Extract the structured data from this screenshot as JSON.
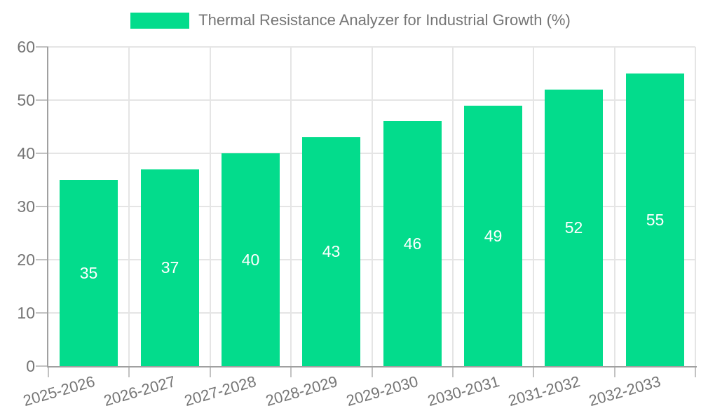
{
  "chart_data": {
    "type": "bar",
    "title": "Thermal Resistance Analyzer for Industrial Growth (%)",
    "legend_label": "Thermal Resistance Analyzer for Industrial Growth (%)",
    "categories": [
      "2025-2026",
      "2026-2027",
      "2027-2028",
      "2028-2029",
      "2029-2030",
      "2030-2031",
      "2031-2032",
      "2032-2033"
    ],
    "values": [
      35,
      37,
      40,
      43,
      46,
      49,
      52,
      55
    ],
    "xlabel": "",
    "ylabel": "",
    "ylim": [
      0,
      60
    ],
    "yticks": [
      0,
      10,
      20,
      30,
      40,
      50,
      60
    ],
    "grid": true,
    "legend_position": "top-center",
    "x_label_rotation_deg": -16,
    "bar_color": "#03DC8C",
    "bar_label_color": "#FFFFFF"
  },
  "colors": {
    "background": "#FFFFFF",
    "bar": "#03DC8C",
    "title_text": "#757575",
    "axis_label": "#757575",
    "axis_line": "#A0A0A0",
    "tick": "#C2C2C2",
    "gridline": "#E5E5E5",
    "bar_label": "#FFFFFF"
  }
}
